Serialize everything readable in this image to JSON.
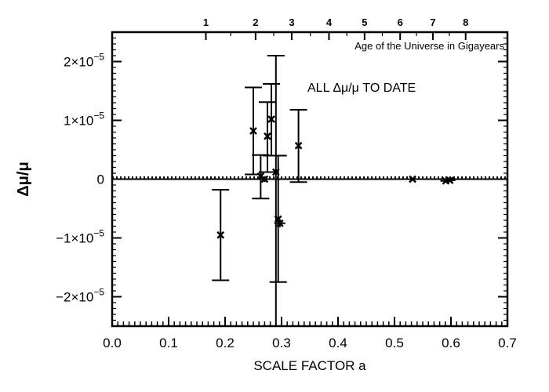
{
  "chart_data": {
    "type": "scatter",
    "xlabel": "SCALE FACTOR a",
    "ylabel": "Δμ/μ",
    "annotation": "ALL Δμ/μ TO DATE",
    "top_axis_label": "Age of the Universe in Gigayears",
    "xlim": [
      0.0,
      0.7
    ],
    "ylim": [
      -2.5e-05,
      2.5e-05
    ],
    "x_ticks": [
      0.0,
      0.1,
      0.2,
      0.3,
      0.4,
      0.5,
      0.6,
      0.7
    ],
    "x_tick_labels": [
      "0.0",
      "0.1",
      "0.2",
      "0.3",
      "0.4",
      "0.5",
      "0.6",
      "0.7"
    ],
    "y_ticks": [
      -2e-05,
      -1e-05,
      0,
      1e-05,
      2e-05
    ],
    "y_tick_labels": [
      {
        "mant": "−2×10",
        "exp": "−5"
      },
      {
        "mant": "−1×10",
        "exp": "−5"
      },
      {
        "mant": "0",
        "exp": ""
      },
      {
        "mant": "1×10",
        "exp": "−5"
      },
      {
        "mant": "2×10",
        "exp": "−5"
      }
    ],
    "top_ticks": [
      {
        "label": "1",
        "a": 0.166
      },
      {
        "label": "2",
        "a": 0.254
      },
      {
        "label": "3",
        "a": 0.318
      },
      {
        "label": "4",
        "a": 0.384
      },
      {
        "label": "5",
        "a": 0.447
      },
      {
        "label": "6",
        "a": 0.51
      },
      {
        "label": "7",
        "a": 0.568
      },
      {
        "label": "8",
        "a": 0.626
      }
    ],
    "points": [
      {
        "x": 0.192,
        "y": -9.5e-06,
        "ylow": -1.72e-05,
        "yhigh": -1.8e-06
      },
      {
        "x": 0.25,
        "y": 8.2e-06,
        "ylow": 8e-07,
        "yhigh": 1.56e-05
      },
      {
        "x": 0.263,
        "y": 5e-07,
        "ylow": -3.3e-06,
        "yhigh": 4.1e-06
      },
      {
        "x": 0.27,
        "y": 0.0,
        "ylow": -5e-07,
        "yhigh": 5e-07
      },
      {
        "x": 0.275,
        "y": 7.3e-06,
        "ylow": 1.2e-06,
        "yhigh": 1.31e-05
      },
      {
        "x": 0.282,
        "y": 1.02e-05,
        "ylow": 4e-06,
        "yhigh": 1.62e-05
      },
      {
        "x": 0.29,
        "y": 1.2e-06,
        "ylow": -2.55e-05,
        "yhigh": 2.1e-05
      },
      {
        "x": 0.294,
        "y": -6.8e-06,
        "ylow": -1.75e-05,
        "yhigh": 4e-06
      },
      {
        "x": 0.297,
        "y": -7.5e-06,
        "ylow": -8.2e-06,
        "yhigh": -6.8e-06
      },
      {
        "x": 0.33,
        "y": 5.7e-06,
        "ylow": -5e-07,
        "yhigh": 1.18e-05
      },
      {
        "x": 0.532,
        "y": 0.0,
        "ylow": -2e-07,
        "yhigh": 2e-07
      },
      {
        "x": 0.591,
        "y": -3e-07,
        "ylow": -6e-07,
        "yhigh": 0.0
      },
      {
        "x": 0.598,
        "y": -2e-07,
        "ylow": -5e-07,
        "yhigh": 1e-07
      }
    ],
    "reference_lines": [
      {
        "y": 0,
        "style": "solid"
      },
      {
        "y": 3e-07,
        "style": "dotted"
      }
    ],
    "grid": false
  }
}
